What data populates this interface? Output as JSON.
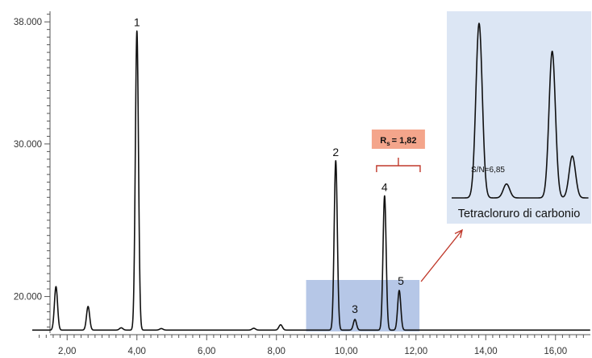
{
  "chart_data": [
    {
      "type": "line",
      "title": "",
      "xlabel": "",
      "ylabel": "",
      "xlim": [
        1.0,
        17.0
      ],
      "ylim": [
        17500,
        38800
      ],
      "grid": false,
      "x_ticks": [
        {
          "value": 2,
          "label": "2,00"
        },
        {
          "value": 4,
          "label": "4,00"
        },
        {
          "value": 6,
          "label": "6,00"
        },
        {
          "value": 8,
          "label": "8,00"
        },
        {
          "value": 10,
          "label": "10,00"
        },
        {
          "value": 12,
          "label": "12,00"
        },
        {
          "value": 14,
          "label": "14,00"
        },
        {
          "value": 16,
          "label": "16,00"
        }
      ],
      "y_ticks": [
        {
          "value": 20000,
          "label": "20.000"
        },
        {
          "value": 30000,
          "label": "30.000"
        },
        {
          "value": 38000,
          "label": "38.000"
        }
      ],
      "baseline": 17800,
      "series": [
        {
          "color": "#111111",
          "peaks": [
            {
              "x": 1.68,
              "height": 20650
            },
            {
              "x": 2.6,
              "height": 19350
            },
            {
              "x": 3.55,
              "height": 17950
            },
            {
              "x": 4.0,
              "height": 37400,
              "label": "1"
            },
            {
              "x": 4.7,
              "height": 17900
            },
            {
              "x": 7.35,
              "height": 17920
            },
            {
              "x": 8.12,
              "height": 18150
            },
            {
              "x": 9.7,
              "height": 28900,
              "label": "2"
            },
            {
              "x": 10.25,
              "height": 18500,
              "label": "3"
            },
            {
              "x": 11.1,
              "height": 26600,
              "label": "4"
            },
            {
              "x": 11.52,
              "height": 20400,
              "label": "5"
            }
          ]
        }
      ],
      "annotations": [
        {
          "type": "resolution",
          "text": "= 1,82",
          "symbol": "R",
          "subscript": "s",
          "from_peak": "3",
          "to_peak": "5",
          "color": "#f4a58b",
          "bracket_color": "#c0392b"
        }
      ],
      "highlight": {
        "x_range": [
          8.85,
          12.1
        ],
        "color": "#a9bde3"
      },
      "arrow_color": "#c0392b"
    },
    {
      "type": "line",
      "title": "Tetracloruro di carbonio",
      "background": "#dce6f4",
      "annotation": "S/N=6,85",
      "series": [
        {
          "color": "#111111",
          "peaks": [
            {
              "x": 0.3,
              "height": 1.0
            },
            {
              "x": 0.6,
              "height": 0.08
            },
            {
              "x": 1.1,
              "height": 0.84
            },
            {
              "x": 1.32,
              "height": 0.24
            }
          ]
        }
      ]
    }
  ]
}
